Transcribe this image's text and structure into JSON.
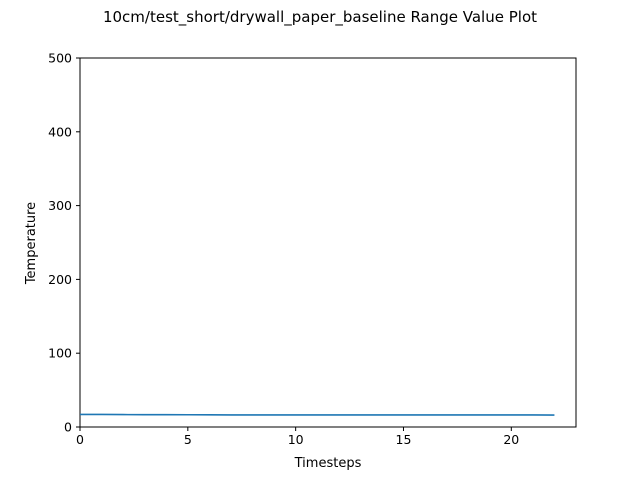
{
  "chart_data": {
    "type": "line",
    "title": "10cm/test_short/drywall_paper_baseline Range Value Plot",
    "xlabel": "Timesteps",
    "ylabel": "Temperature",
    "xlim": [
      0,
      23
    ],
    "ylim": [
      0,
      500
    ],
    "xticks": [
      0,
      5,
      10,
      15,
      20
    ],
    "yticks": [
      0,
      100,
      200,
      300,
      400,
      500
    ],
    "grid": false,
    "series": [
      {
        "color": "#1f77b4",
        "x": [
          0,
          1,
          2,
          3,
          4,
          5,
          6,
          7,
          8,
          9,
          10,
          11,
          12,
          13,
          14,
          15,
          16,
          17,
          18,
          19,
          20,
          21,
          22
        ],
        "y": [
          17,
          17,
          16.8,
          16.7,
          16.7,
          16.6,
          16.5,
          16.4,
          16.4,
          16.4,
          16.4,
          16.4,
          16.4,
          16.4,
          16.4,
          16.4,
          16.4,
          16.4,
          16.3,
          16.3,
          16.3,
          16.3,
          16.2
        ]
      }
    ]
  }
}
